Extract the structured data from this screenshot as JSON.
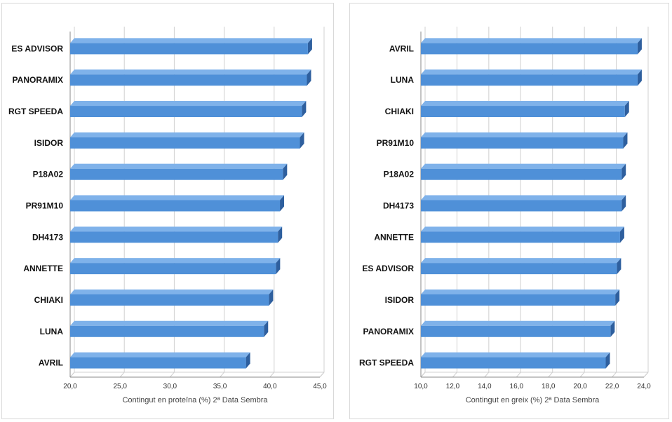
{
  "colors": {
    "bar_front": "#4f90d8",
    "bar_top": "#7fb2ea",
    "bar_side": "#2e5f9e",
    "grid": "#d0d0d0",
    "axis": "#888888"
  },
  "chart_data": [
    {
      "type": "bar",
      "orientation": "horizontal",
      "categories": [
        "ES ADVISOR",
        "PANORAMIX",
        "RGT SPEEDA",
        "ISIDOR",
        "P18A02",
        "PR91M10",
        "DH4173",
        "ANNETTE",
        "CHIAKI",
        "LUNA",
        "AVRIL"
      ],
      "values": [
        43.8,
        43.7,
        43.2,
        43.0,
        41.3,
        41.0,
        40.8,
        40.6,
        39.9,
        39.4,
        37.6
      ],
      "xlim": [
        20,
        45
      ],
      "xticks": [
        "20,0",
        "25,0",
        "30,0",
        "35,0",
        "40,0",
        "45,0"
      ],
      "xlabel": "Contingut en proteïna (%) 2ª Data Sembra",
      "ylabel": "",
      "title": "",
      "grid": true,
      "style": "3d"
    },
    {
      "type": "bar",
      "orientation": "horizontal",
      "categories": [
        "AVRIL",
        "LUNA",
        "CHIAKI",
        "PR91M10",
        "P18A02",
        "DH4173",
        "ANNETTE",
        "ES ADVISOR",
        "ISIDOR",
        "PANORAMIX",
        "RGT SPEEDA"
      ],
      "values": [
        23.6,
        23.6,
        22.8,
        22.7,
        22.6,
        22.6,
        22.5,
        22.3,
        22.2,
        21.9,
        21.6
      ],
      "xlim": [
        10,
        24
      ],
      "xticks": [
        "10,0",
        "12,0",
        "14,0",
        "16,0",
        "18,0",
        "20,0",
        "22,0",
        "24,0"
      ],
      "xlabel": "Contingut en greix (%) 2ª Data Sembra",
      "ylabel": "",
      "title": "",
      "grid": true,
      "style": "3d"
    }
  ]
}
